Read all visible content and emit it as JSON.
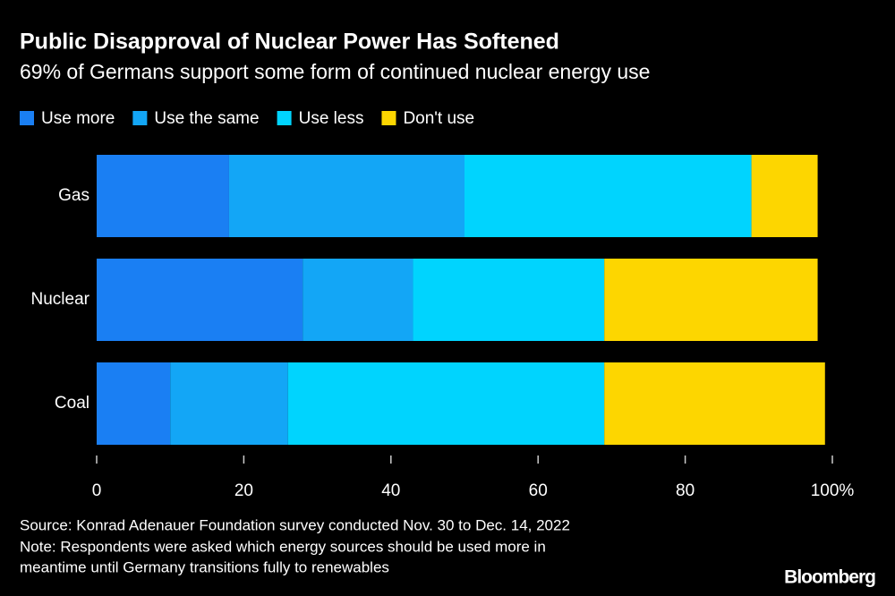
{
  "chart_data": {
    "type": "stacked-bar-horizontal",
    "title": "Public Disapproval of Nuclear Power Has Softened",
    "subtitle": "69% of Germans support some form of continued nuclear energy use",
    "categories": [
      "Gas",
      "Nuclear",
      "Coal"
    ],
    "series": [
      {
        "name": "Use more",
        "color": "#1a7ff3",
        "values": [
          18,
          28,
          10
        ]
      },
      {
        "name": "Use the same",
        "color": "#13a6f6",
        "values": [
          32,
          15,
          16
        ]
      },
      {
        "name": "Use less",
        "color": "#00d4fe",
        "values": [
          39,
          26,
          43
        ]
      },
      {
        "name": "Don't use",
        "color": "#fdd600",
        "values": [
          9,
          29,
          30
        ]
      }
    ],
    "xlim": [
      0,
      100
    ],
    "xticks": [
      0,
      20,
      40,
      60,
      80,
      {
        "value": 100,
        "label": "100%"
      }
    ],
    "source": "Source: Konrad Adenauer Foundation survey conducted Nov. 30 to Dec. 14, 2022",
    "note_lines": [
      "Note: Respondents were asked which energy sources should be used more in",
      "meantime until Germany transitions fully to renewables"
    ],
    "brand": "Bloomberg"
  }
}
